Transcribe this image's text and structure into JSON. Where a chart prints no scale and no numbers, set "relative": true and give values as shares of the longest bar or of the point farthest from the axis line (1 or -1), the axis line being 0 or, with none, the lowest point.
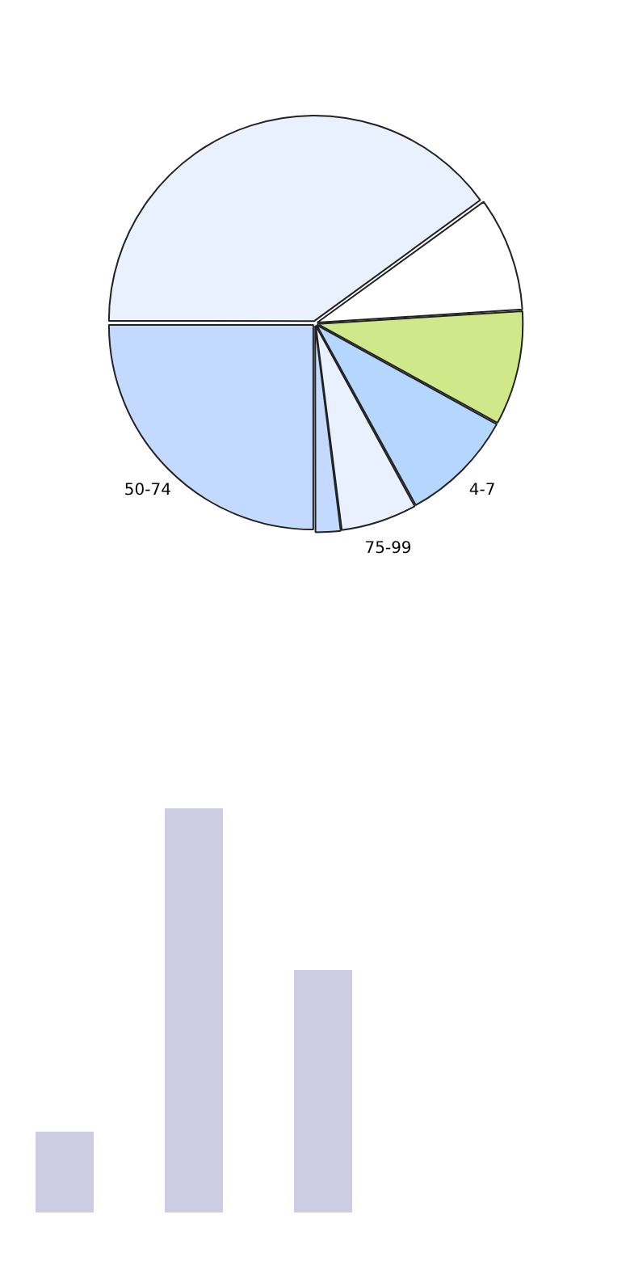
{
  "chart_data": [
    {
      "type": "pie",
      "categories": [
        null,
        null,
        null,
        "4-7",
        "75-99",
        null,
        "50-74"
      ],
      "values": [
        40,
        9,
        9,
        9,
        6,
        2,
        25
      ],
      "colors": [
        "#eaf1fe",
        "#ffffff",
        "#cfe98a",
        "#b4d6ff",
        "#eaf1fe",
        "#c4d9ff",
        "#c4d9ff"
      ]
    },
    {
      "type": "bar",
      "relative": true,
      "categories": [
        null,
        null,
        null
      ],
      "values": [
        0.2,
        1,
        0.6
      ],
      "color": "#cccce4"
    }
  ]
}
